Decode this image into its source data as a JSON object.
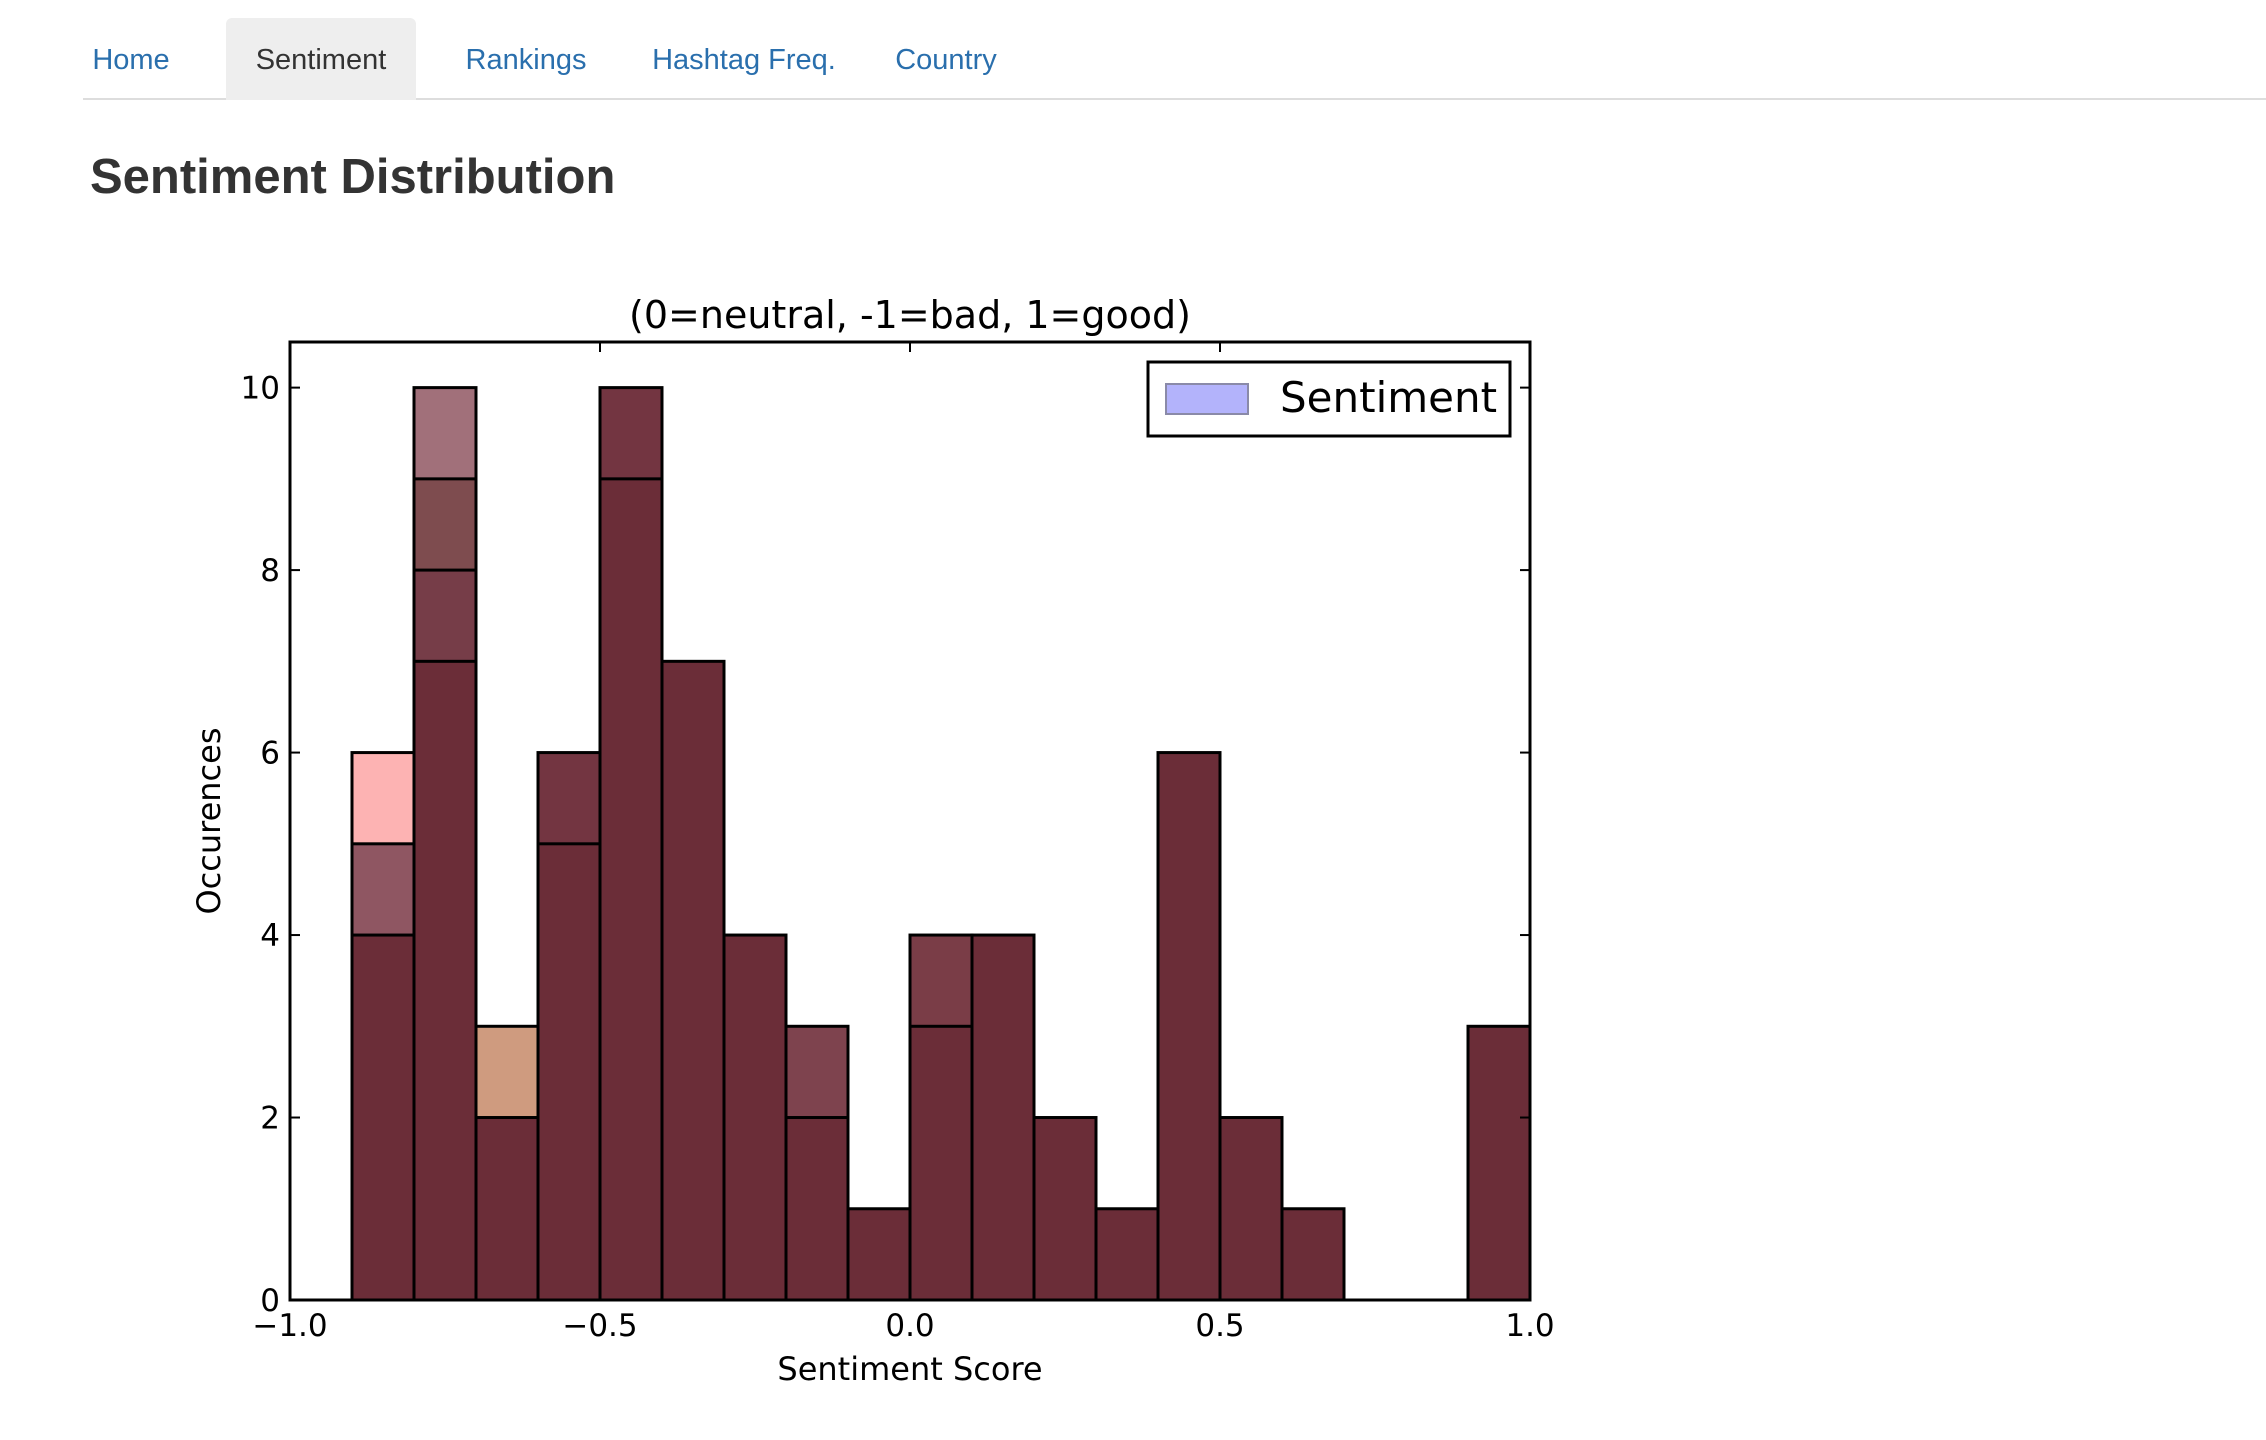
{
  "nav": {
    "tabs": [
      {
        "id": "home",
        "label": "Home",
        "active": false
      },
      {
        "id": "sentiment",
        "label": "Sentiment",
        "active": true
      },
      {
        "id": "rankings",
        "label": "Rankings",
        "active": false
      },
      {
        "id": "hashtag",
        "label": "Hashtag Freq.",
        "active": false
      },
      {
        "id": "country",
        "label": "Country",
        "active": false
      }
    ]
  },
  "page": {
    "title": "Sentiment Distribution"
  },
  "chart_data": {
    "type": "bar",
    "title": "(0=neutral, -1=bad, 1=good)",
    "xlabel": "Sentiment Score",
    "ylabel": "Occurences",
    "xlim": [
      -1.0,
      1.0
    ],
    "ylim": [
      0,
      10.5
    ],
    "x_ticks": [
      -1.0,
      -0.5,
      0.0,
      0.5,
      1.0
    ],
    "x_tick_labels": [
      "−1.0",
      "−0.5",
      "0.0",
      "0.5",
      "1.0"
    ],
    "y_ticks": [
      0,
      2,
      4,
      6,
      8,
      10
    ],
    "y_tick_labels": [
      "0",
      "2",
      "4",
      "6",
      "8",
      "10"
    ],
    "bin_width": 0.1,
    "legend": {
      "label": "Sentiment",
      "position": "top-right",
      "swatch_color": "#b3b3fb"
    },
    "grid": false,
    "front_color": "#6b2d38",
    "bins": [
      {
        "x0": -0.9,
        "layers": [
          {
            "height": 6,
            "color": "#fdb3b3"
          },
          {
            "height": 5,
            "color": "#8f5662"
          },
          {
            "height": 4,
            "color": "#6b2d38"
          }
        ]
      },
      {
        "x0": -0.8,
        "layers": [
          {
            "height": 10,
            "color": "#a1707a"
          },
          {
            "height": 9,
            "color": "#7e4c4f"
          },
          {
            "height": 8,
            "color": "#763d48"
          },
          {
            "height": 7,
            "color": "#6b2d38"
          }
        ]
      },
      {
        "x0": -0.7,
        "layers": [
          {
            "height": 3,
            "color": "#cf9b7f"
          },
          {
            "height": 2,
            "color": "#6b2d38"
          }
        ]
      },
      {
        "x0": -0.6,
        "layers": [
          {
            "height": 6,
            "color": "#733541"
          },
          {
            "height": 5,
            "color": "#6b2d38"
          }
        ]
      },
      {
        "x0": -0.5,
        "layers": [
          {
            "height": 10,
            "color": "#733541"
          },
          {
            "height": 9,
            "color": "#6b2d38"
          }
        ]
      },
      {
        "x0": -0.4,
        "layers": [
          {
            "height": 7,
            "color": "#6b2d38"
          }
        ]
      },
      {
        "x0": -0.3,
        "layers": [
          {
            "height": 4,
            "color": "#6b2d38"
          }
        ]
      },
      {
        "x0": -0.2,
        "layers": [
          {
            "height": 3,
            "color": "#7e434e"
          },
          {
            "height": 2,
            "color": "#6b2d38"
          }
        ]
      },
      {
        "x0": -0.1,
        "layers": [
          {
            "height": 1,
            "color": "#6b2d38"
          }
        ]
      },
      {
        "x0": 0.0,
        "layers": [
          {
            "height": 4,
            "color": "#7a3d47"
          },
          {
            "height": 3,
            "color": "#6b2d38"
          }
        ]
      },
      {
        "x0": 0.1,
        "layers": [
          {
            "height": 4,
            "color": "#6b2d38"
          }
        ]
      },
      {
        "x0": 0.2,
        "layers": [
          {
            "height": 2,
            "color": "#6b2d38"
          }
        ]
      },
      {
        "x0": 0.3,
        "layers": [
          {
            "height": 1,
            "color": "#6b2d38"
          }
        ]
      },
      {
        "x0": 0.4,
        "layers": [
          {
            "height": 6,
            "color": "#6b2d38"
          }
        ]
      },
      {
        "x0": 0.5,
        "layers": [
          {
            "height": 2,
            "color": "#6b2d38"
          }
        ]
      },
      {
        "x0": 0.6,
        "layers": [
          {
            "height": 1,
            "color": "#6b2d38"
          }
        ]
      },
      {
        "x0": 0.7,
        "layers": [
          {
            "height": 0,
            "color": "#6b2d38"
          }
        ]
      },
      {
        "x0": 0.8,
        "layers": [
          {
            "height": 0,
            "color": "#6b2d38"
          }
        ]
      },
      {
        "x0": 0.9,
        "layers": [
          {
            "height": 3,
            "color": "#6b2d38"
          }
        ]
      }
    ]
  }
}
